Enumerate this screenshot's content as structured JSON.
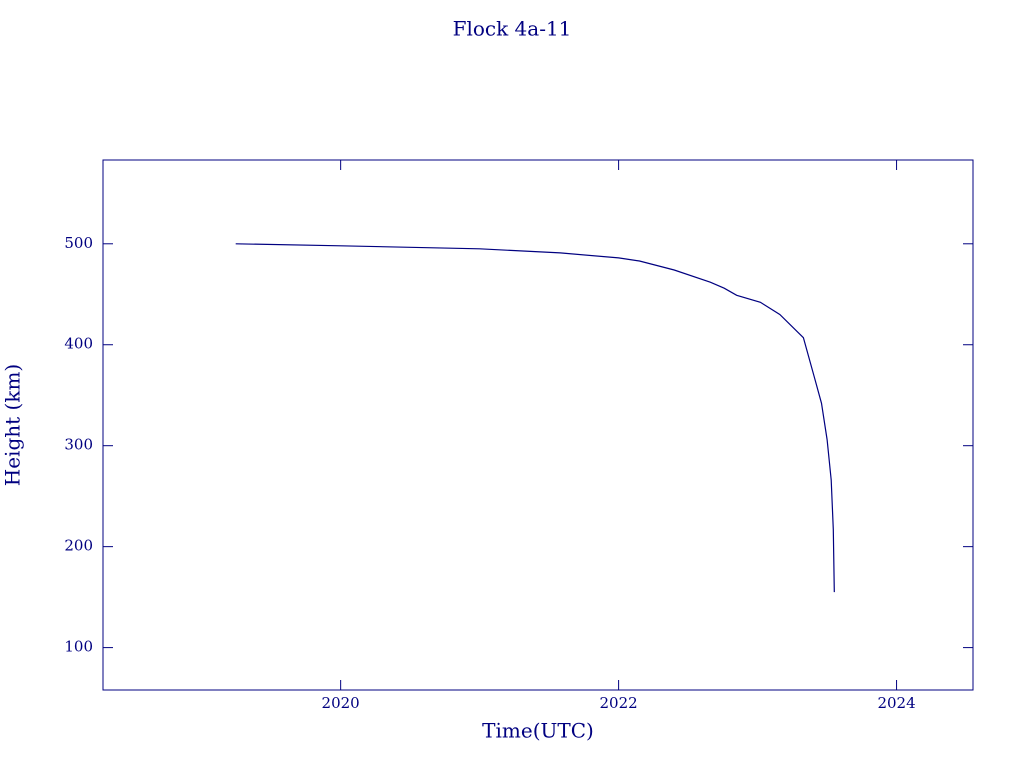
{
  "chart_data": {
    "type": "line",
    "title": "Flock 4a-11",
    "x_label": "Time(UTC)",
    "y_label": "Height (km)",
    "color": "#000080",
    "x": [
      2019.245,
      2020.0,
      2021.0,
      2021.58,
      2022.0,
      2022.15,
      2022.4,
      2022.66,
      2022.76,
      2022.85,
      2023.02,
      2023.16,
      2023.33,
      2023.41,
      2023.46,
      2023.5,
      2023.53,
      2023.545,
      2023.552
    ],
    "values": [
      500,
      498,
      495,
      491,
      486,
      483,
      474,
      462,
      456,
      449,
      442,
      430,
      407,
      367,
      342,
      306,
      266,
      217,
      155
    ],
    "xlim": [
      2018.29,
      2024.55
    ],
    "xticks": [
      2020,
      2022,
      2024
    ],
    "ylim": [
      58,
      583
    ],
    "yticks": [
      100,
      200,
      300,
      400,
      500
    ]
  }
}
